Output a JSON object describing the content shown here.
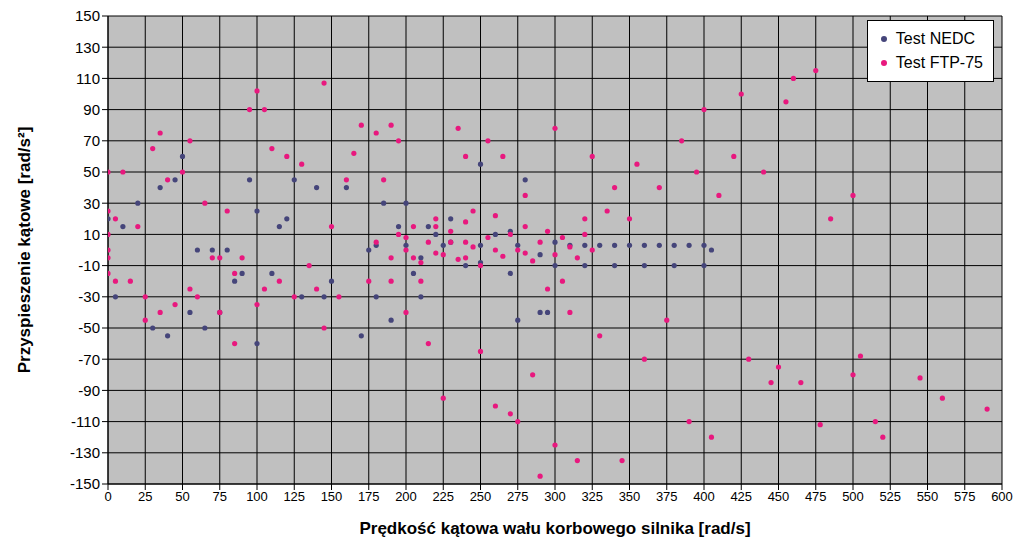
{
  "chart_data": {
    "type": "scatter",
    "x_label": "Prędkość kątowa wału korbowego silnika  [rad/s]",
    "y_label": "Przyspieszenie kątowe [rad/s²]",
    "xlim": [
      0,
      600
    ],
    "xticks": [
      0,
      25,
      50,
      75,
      100,
      125,
      150,
      175,
      200,
      225,
      250,
      275,
      300,
      325,
      350,
      375,
      400,
      425,
      450,
      475,
      500,
      525,
      550,
      575,
      600
    ],
    "ylim": [
      -150,
      150
    ],
    "yticks": [
      -150,
      -130,
      -110,
      -90,
      -70,
      -50,
      -30,
      -10,
      10,
      30,
      50,
      70,
      90,
      110,
      130,
      150
    ],
    "grid": true,
    "legend": "upper right",
    "marker": "circle",
    "series": [
      {
        "name": "Test NEDC",
        "color": "#45457a",
        "x": [
          0,
          5,
          10,
          20,
          30,
          35,
          40,
          45,
          50,
          55,
          60,
          65,
          70,
          75,
          80,
          85,
          90,
          95,
          100,
          100,
          110,
          115,
          120,
          125,
          130,
          140,
          145,
          150,
          160,
          170,
          175,
          180,
          185,
          190,
          195,
          200,
          205,
          210,
          215,
          220,
          230,
          240,
          250,
          260,
          270,
          275,
          280,
          290,
          295,
          300,
          310,
          320,
          330,
          340,
          350,
          360,
          370,
          380,
          390,
          400,
          405,
          300,
          320,
          340,
          360,
          380,
          400,
          180,
          200,
          225,
          250,
          275,
          210,
          230,
          250,
          270,
          290
        ],
        "values": [
          20,
          -30,
          15,
          30,
          -50,
          40,
          -55,
          45,
          60,
          -40,
          0,
          -50,
          0,
          -40,
          0,
          -20,
          -15,
          45,
          -60,
          25,
          -15,
          15,
          20,
          45,
          -30,
          40,
          -30,
          -20,
          40,
          -55,
          0,
          -30,
          30,
          -45,
          15,
          30,
          -15,
          -30,
          15,
          10,
          20,
          -10,
          55,
          10,
          -15,
          -45,
          45,
          -40,
          -40,
          5,
          3,
          3,
          3,
          3,
          3,
          3,
          3,
          3,
          3,
          3,
          0,
          -10,
          -10,
          -10,
          -10,
          -10,
          -10,
          3,
          3,
          3,
          3,
          3,
          -5,
          5,
          -8,
          12,
          -3
        ]
      },
      {
        "name": "Test FTP-75",
        "color": "#e8187e",
        "x": [
          0,
          0,
          0,
          0,
          0,
          0,
          5,
          5,
          10,
          15,
          20,
          25,
          25,
          30,
          35,
          35,
          40,
          45,
          50,
          55,
          55,
          60,
          65,
          70,
          75,
          75,
          80,
          85,
          85,
          90,
          95,
          100,
          100,
          105,
          105,
          110,
          115,
          120,
          125,
          130,
          135,
          140,
          145,
          145,
          150,
          155,
          160,
          165,
          170,
          175,
          180,
          185,
          190,
          190,
          195,
          200,
          205,
          210,
          215,
          220,
          225,
          230,
          235,
          240,
          240,
          245,
          250,
          255,
          260,
          265,
          270,
          275,
          280,
          285,
          290,
          295,
          300,
          300,
          305,
          310,
          315,
          320,
          325,
          330,
          335,
          340,
          345,
          350,
          355,
          360,
          370,
          375,
          385,
          390,
          395,
          400,
          405,
          410,
          420,
          425,
          430,
          440,
          445,
          450,
          455,
          460,
          465,
          475,
          478,
          485,
          500,
          500,
          505,
          515,
          520,
          545,
          560,
          590,
          180,
          190,
          195,
          200,
          205,
          210,
          215,
          220,
          225,
          230,
          235,
          240,
          245,
          250,
          255,
          260,
          265,
          270,
          275,
          280,
          285,
          290,
          295,
          300,
          305,
          310,
          315,
          320,
          325,
          200,
          220,
          240,
          260,
          280
        ],
        "values": [
          50,
          25,
          10,
          0,
          -5,
          -15,
          20,
          -20,
          50,
          -20,
          15,
          -30,
          -45,
          65,
          75,
          -40,
          45,
          -35,
          50,
          70,
          -25,
          -30,
          30,
          -5,
          -5,
          -40,
          25,
          -15,
          -60,
          -5,
          90,
          102,
          -35,
          90,
          -25,
          65,
          -20,
          60,
          -30,
          55,
          -10,
          -25,
          107,
          -50,
          15,
          -30,
          45,
          62,
          80,
          -20,
          75,
          45,
          80,
          -20,
          70,
          -40,
          -5,
          -20,
          -60,
          15,
          -95,
          5,
          78,
          -5,
          60,
          25,
          -65,
          70,
          -100,
          60,
          -105,
          -110,
          35,
          -80,
          -145,
          -25,
          78,
          -125,
          -20,
          -40,
          -135,
          20,
          60,
          -55,
          25,
          40,
          -135,
          20,
          55,
          -70,
          40,
          -45,
          70,
          -110,
          50,
          90,
          -120,
          35,
          60,
          100,
          -70,
          50,
          -85,
          -75,
          95,
          110,
          -85,
          115,
          -112,
          20,
          35,
          -80,
          -68,
          -110,
          -120,
          -82,
          -95,
          -102,
          5,
          -5,
          10,
          0,
          15,
          -8,
          5,
          20,
          -3,
          12,
          -6,
          18,
          2,
          -10,
          8,
          22,
          -4,
          10,
          0,
          15,
          -7,
          5,
          12,
          -3,
          8,
          2,
          -5,
          10,
          0,
          8,
          -2,
          5,
          0,
          -2
        ]
      }
    ]
  }
}
